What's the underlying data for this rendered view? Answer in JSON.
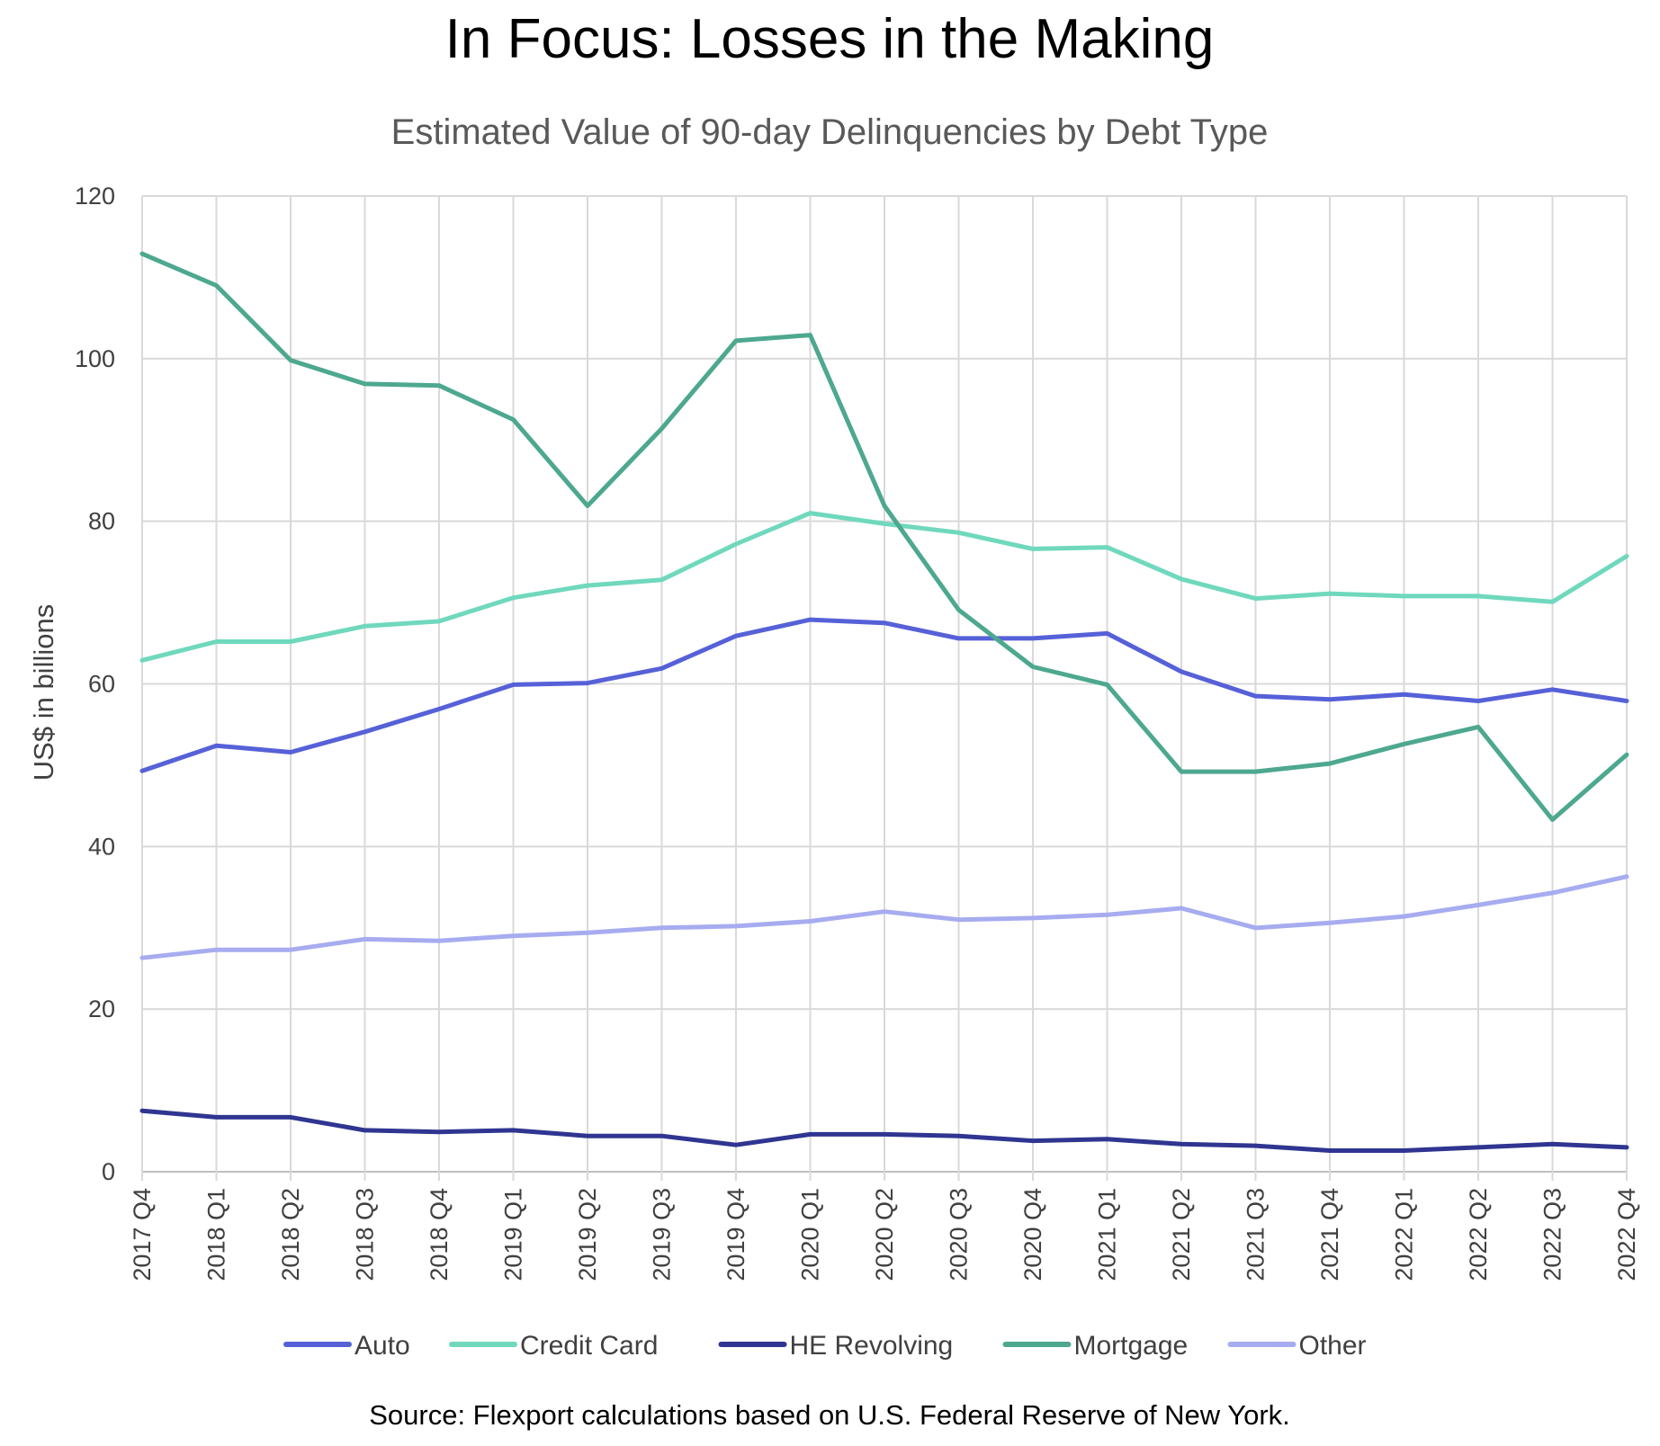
{
  "chart_data": {
    "type": "line",
    "title": "In Focus: Losses in the Making",
    "subtitle": "Estimated Value of 90-day Delinquencies by Debt Type",
    "ylabel": "US$ in billions",
    "xlabel": "",
    "ylim": [
      0,
      120
    ],
    "yticks": [
      0,
      20,
      40,
      60,
      80,
      100,
      120
    ],
    "grid": true,
    "legend_position": "bottom",
    "source": "Source: Flexport calculations based on U.S. Federal Reserve of New York.",
    "categories": [
      "2017 Q4",
      "2018 Q1",
      "2018 Q2",
      "2018 Q3",
      "2018 Q4",
      "2019 Q1",
      "2019 Q2",
      "2019 Q3",
      "2019 Q4",
      "2020 Q1",
      "2020 Q2",
      "2020 Q3",
      "2020 Q4",
      "2021 Q1",
      "2021 Q2",
      "2021 Q3",
      "2021 Q4",
      "2022 Q1",
      "2022 Q2",
      "2022 Q3",
      "2022 Q4"
    ],
    "series": [
      {
        "name": "Auto",
        "color": "#5661d8",
        "values": [
          49.3,
          52.4,
          51.6,
          54.1,
          56.9,
          59.9,
          60.1,
          61.9,
          65.9,
          67.9,
          67.5,
          65.6,
          65.6,
          66.2,
          61.5,
          58.5,
          58.1,
          58.7,
          57.9,
          59.3,
          57.9
        ]
      },
      {
        "name": "Credit Card",
        "color": "#6fd8bd",
        "values": [
          62.9,
          65.2,
          65.2,
          67.1,
          67.7,
          70.6,
          72.1,
          72.8,
          77.2,
          81.0,
          79.7,
          78.6,
          76.6,
          76.8,
          72.9,
          70.5,
          71.1,
          70.8,
          70.8,
          70.1,
          75.7
        ]
      },
      {
        "name": "HE Revolving",
        "color": "#2f3590",
        "values": [
          7.5,
          6.7,
          6.7,
          5.1,
          4.9,
          5.1,
          4.4,
          4.4,
          3.3,
          4.6,
          4.6,
          4.4,
          3.8,
          4.0,
          3.4,
          3.2,
          2.6,
          2.6,
          3.0,
          3.4,
          3.0
        ]
      },
      {
        "name": "Mortgage",
        "color": "#4da88f",
        "values": [
          112.9,
          109.0,
          99.8,
          96.9,
          96.7,
          92.5,
          81.9,
          91.4,
          102.2,
          102.9,
          81.9,
          69.1,
          62.1,
          59.9,
          49.2,
          49.2,
          50.2,
          52.6,
          54.7,
          43.3,
          51.3
        ]
      },
      {
        "name": "Other",
        "color": "#a7acf0",
        "values": [
          26.3,
          27.3,
          27.3,
          28.6,
          28.4,
          29.0,
          29.4,
          30.0,
          30.2,
          30.8,
          32.0,
          31.0,
          31.2,
          31.6,
          32.4,
          30.0,
          30.6,
          31.4,
          32.8,
          34.3,
          36.3
        ]
      }
    ]
  }
}
